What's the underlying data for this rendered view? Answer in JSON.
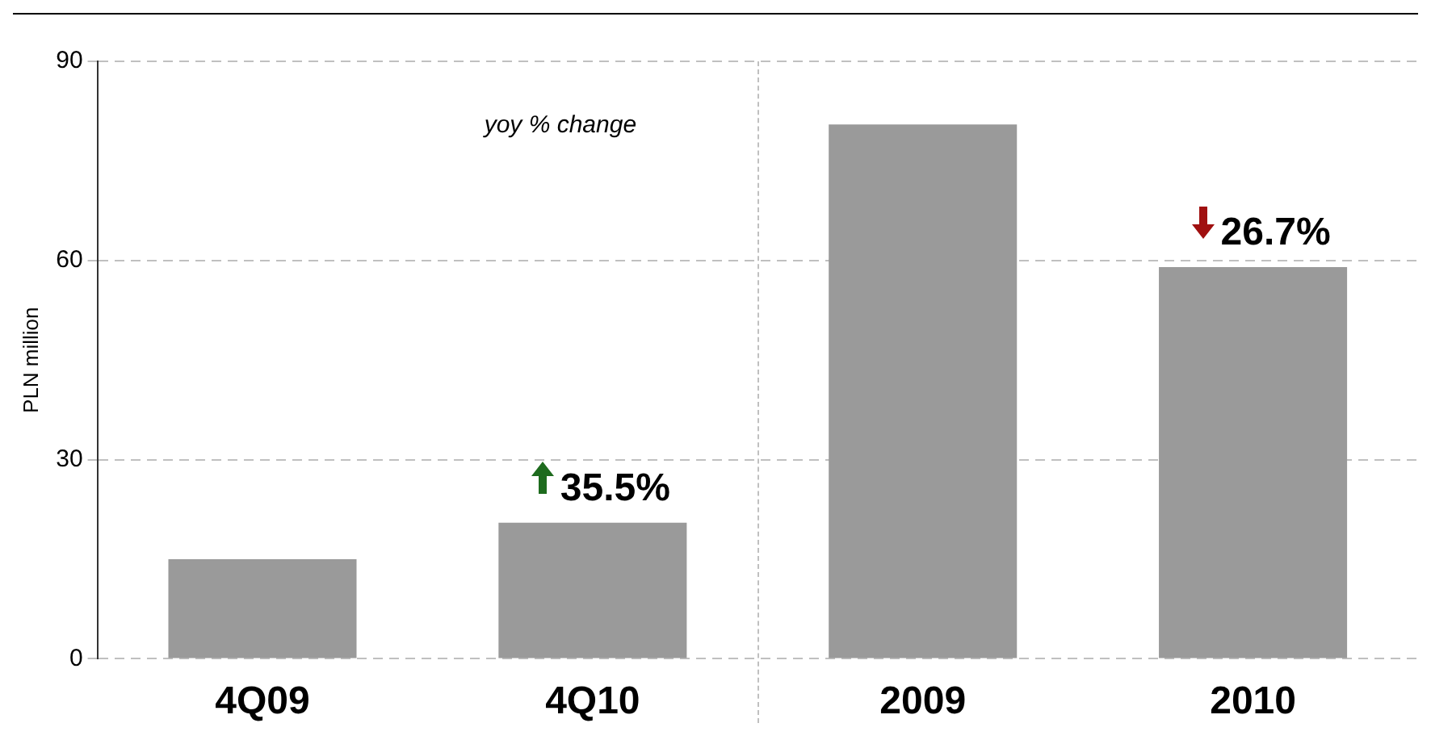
{
  "chart_data": {
    "type": "bar",
    "ylabel": "PLN million",
    "categories": [
      "4Q09",
      "4Q10",
      "2009",
      "2010"
    ],
    "values": [
      15,
      20.5,
      80.5,
      59
    ],
    "color": "#9a9a9a",
    "ylim": [
      0,
      90
    ],
    "yticks": [
      0,
      30,
      60,
      90
    ],
    "grid": "y",
    "legend": false,
    "annotations": [
      "yoy % change",
      {
        "text": "35.5%",
        "x": "4Q10",
        "y": 20.5
      },
      {
        "text": "26.7%",
        "x": "2010",
        "y": 59
      }
    ]
  }
}
